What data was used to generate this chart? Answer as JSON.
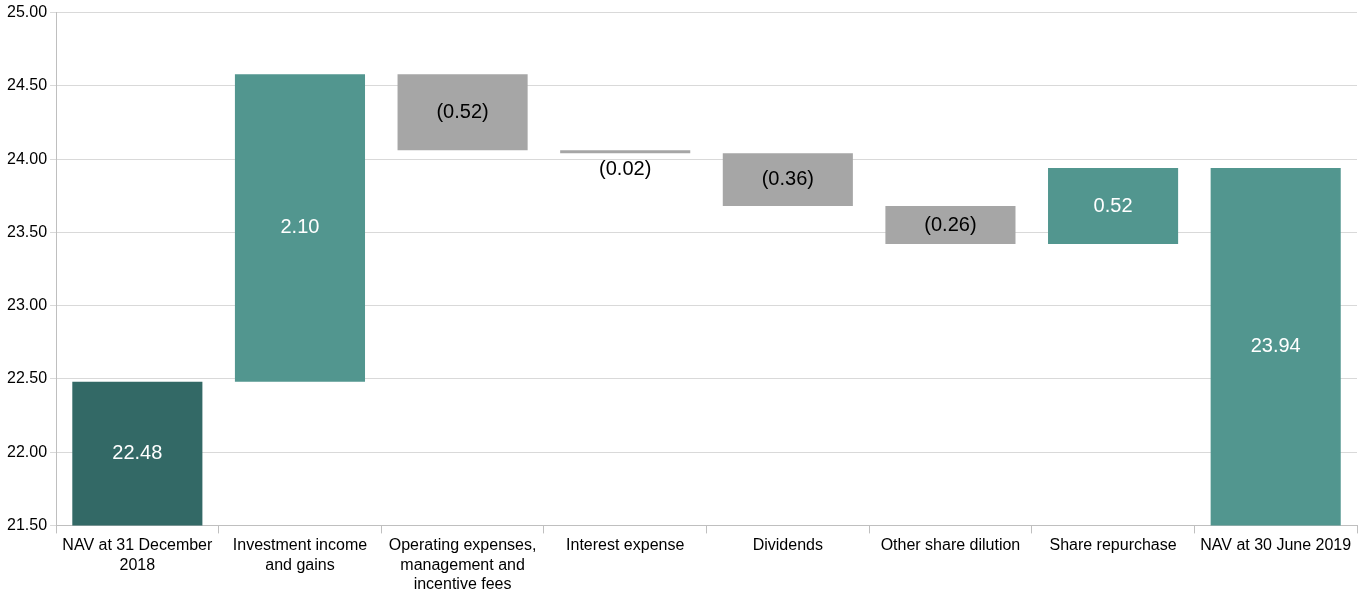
{
  "chart_data": {
    "type": "bar",
    "categories": [
      "NAV at 31 December 2018",
      "Investment income and gains",
      "Operating expenses, management and incentive fees",
      "Interest expense",
      "Dividends",
      "Other share dilution",
      "Share repurchase",
      "NAV at 30 June 2019"
    ],
    "values": [
      22.48,
      2.1,
      -0.52,
      -0.02,
      -0.36,
      -0.26,
      0.52,
      23.94
    ],
    "base": [
      null,
      22.48,
      24.58,
      24.06,
      24.04,
      23.68,
      23.42,
      null
    ],
    "colors": [
      "#336966",
      "#52968f",
      "#a6a6a6",
      "#a6a6a6",
      "#a6a6a6",
      "#a6a6a6",
      "#52968f",
      "#52968f"
    ],
    "value_labels": [
      "22.48",
      "2.10",
      "(0.52)",
      "(0.02)",
      "(0.36)",
      "(0.26)",
      "0.52",
      "23.94"
    ],
    "ylim": [
      21.5,
      25.0
    ],
    "yticks": [
      {
        "value": 21.5,
        "label": "21.50"
      },
      {
        "value": 22.0,
        "label": "22.00"
      },
      {
        "value": 22.5,
        "label": "22.50"
      },
      {
        "value": 23.0,
        "label": "23.00"
      },
      {
        "value": 23.5,
        "label": "23.50"
      },
      {
        "value": 24.0,
        "label": "24.00"
      },
      {
        "value": 24.5,
        "label": "24.50"
      },
      {
        "value": 25.0,
        "label": "25.00"
      }
    ],
    "grid": "y",
    "legend": false
  }
}
